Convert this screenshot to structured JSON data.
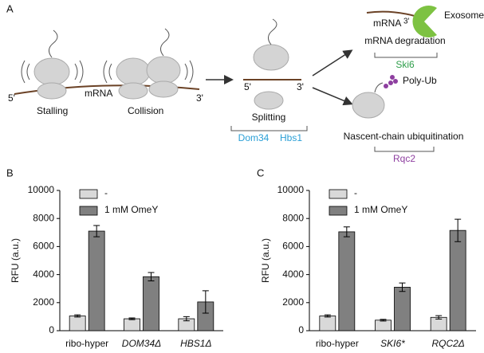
{
  "panel_a": {
    "label": "A",
    "ribosome_track": {
      "five_prime": "5'",
      "mrna": "mRNA",
      "three_prime": "3'",
      "stalling": "Stalling",
      "collision": "Collision"
    },
    "splitting": {
      "five_prime": "5'",
      "three_prime": "3'",
      "label": "Splitting",
      "factor_1": "Dom34",
      "factor_2": "Hbs1"
    },
    "degradation": {
      "mrna": "mRNA",
      "three_prime": "3'",
      "exosome": "Exosome",
      "label": "mRNA degradation",
      "factor": "Ski6"
    },
    "ubiquitination": {
      "poly_ub": "Poly-Ub",
      "label": "Nascent-chain ubiquitination",
      "factor": "Rqc2"
    }
  },
  "chart_data": [
    {
      "type": "bar",
      "panel_label": "B",
      "y_label": "RFU (a.u.)",
      "categories": [
        "ribo-hyper",
        "DOM34Δ",
        "HBS1Δ"
      ],
      "series": [
        {
          "name": "-",
          "color": "#d9d9d9",
          "values": [
            1050,
            850,
            850
          ],
          "errors": [
            80,
            60,
            150
          ]
        },
        {
          "name": "1 mM OmeY",
          "color": "#808080",
          "values": [
            7100,
            3850,
            2050
          ],
          "errors": [
            400,
            300,
            800
          ]
        }
      ],
      "ylim": [
        0,
        10000
      ],
      "yticks": [
        0,
        2000,
        4000,
        6000,
        8000,
        10000
      ],
      "legend": "upper left"
    },
    {
      "type": "bar",
      "panel_label": "C",
      "y_label": "RFU (a.u.)",
      "categories": [
        "ribo-hyper",
        "SKI6*",
        "RQC2Δ"
      ],
      "series": [
        {
          "name": "-",
          "color": "#d9d9d9",
          "values": [
            1050,
            750,
            950
          ],
          "errors": [
            80,
            60,
            120
          ]
        },
        {
          "name": "1 mM OmeY",
          "color": "#808080",
          "values": [
            7050,
            3100,
            7150
          ],
          "errors": [
            350,
            300,
            800
          ]
        }
      ],
      "ylim": [
        0,
        10000
      ],
      "yticks": [
        0,
        2000,
        4000,
        6000,
        8000,
        10000
      ],
      "legend": "upper left"
    }
  ]
}
